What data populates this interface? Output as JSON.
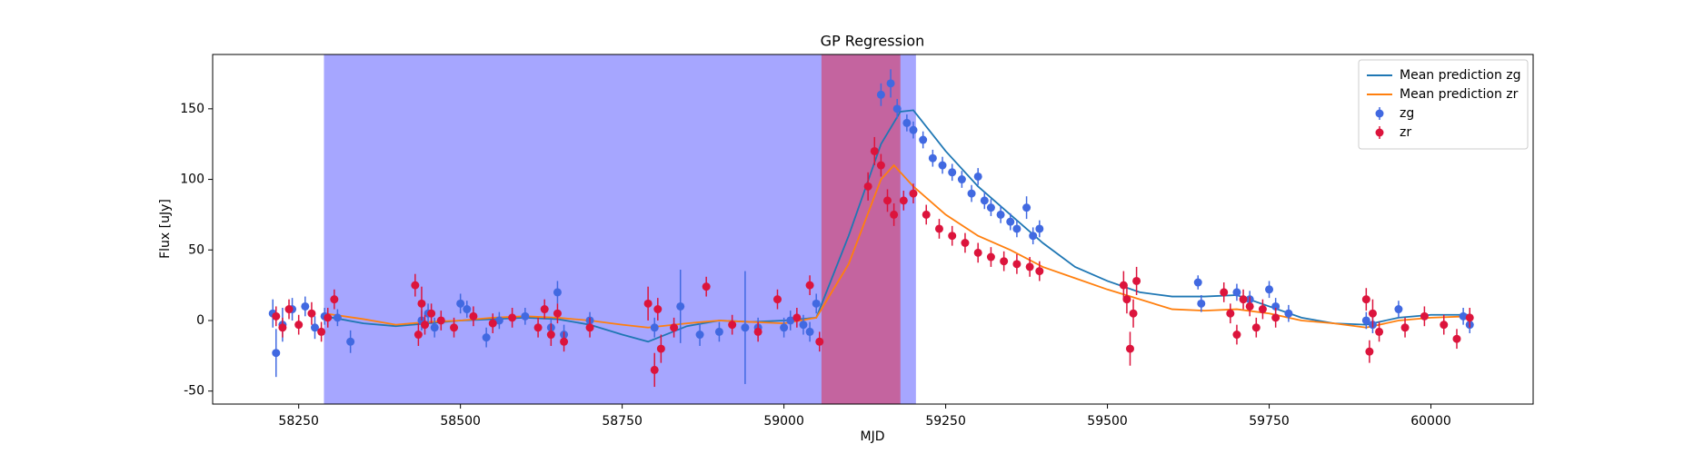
{
  "chart_data": {
    "type": "errorbar-line",
    "title": "GP Regression",
    "x_label": "MJD",
    "y_label": "Flux [uJy]",
    "xlim": [
      58117,
      60158
    ],
    "ylim": [
      -59.2,
      188.5
    ],
    "xticks": [
      58250,
      58500,
      58750,
      59000,
      59250,
      59500,
      59750,
      60000
    ],
    "yticks": [
      -50,
      0,
      50,
      100,
      150
    ],
    "legend": "upper right",
    "spans": [
      {
        "xmin": 58289,
        "xmax": 59204,
        "color": "#a6a6ff"
      },
      {
        "xmin": 59058,
        "xmax": 59180,
        "color": "#c4649f"
      }
    ],
    "series": [
      {
        "name": "Mean prediction zg",
        "style": "line",
        "color": "#1f77b4",
        "x": [
          58290,
          58350,
          58400,
          58450,
          58500,
          58550,
          58600,
          58650,
          58700,
          58750,
          58790,
          58850,
          58900,
          58950,
          59000,
          59050,
          59100,
          59150,
          59180,
          59200,
          59250,
          59300,
          59350,
          59400,
          59450,
          59500,
          59550,
          59600,
          59650,
          59700,
          59750,
          59800,
          59850,
          59900,
          59950,
          60000,
          60060
        ],
        "values": [
          3,
          -2,
          -4,
          -2,
          0,
          1,
          2,
          1,
          -3,
          -10,
          -15,
          -4,
          0,
          -1,
          0,
          2,
          60,
          125,
          148,
          149,
          120,
          95,
          75,
          55,
          38,
          28,
          20,
          17,
          17,
          18,
          10,
          2,
          -2,
          -3,
          2,
          4,
          4
        ]
      },
      {
        "name": "Mean prediction zr",
        "style": "line",
        "color": "#ff7f0e",
        "x": [
          58290,
          58350,
          58400,
          58450,
          58500,
          58550,
          58600,
          58650,
          58700,
          58750,
          58790,
          58850,
          58900,
          58950,
          59000,
          59050,
          59100,
          59150,
          59170,
          59200,
          59250,
          59300,
          59350,
          59400,
          59450,
          59500,
          59550,
          59600,
          59650,
          59700,
          59750,
          59800,
          59850,
          59900,
          59950,
          60000,
          60060
        ],
        "values": [
          5,
          1,
          -3,
          -1,
          0,
          2,
          3,
          2,
          0,
          -3,
          -5,
          -2,
          0,
          -1,
          -2,
          2,
          40,
          100,
          110,
          95,
          75,
          60,
          50,
          38,
          30,
          22,
          15,
          8,
          7,
          8,
          5,
          0,
          -2,
          -5,
          0,
          2,
          3
        ]
      },
      {
        "name": "zg",
        "style": "errorbar",
        "color": "#4169e1",
        "x": [
          58210,
          58215,
          58225,
          58240,
          58260,
          58275,
          58290,
          58310,
          58330,
          58440,
          58450,
          58460,
          58500,
          58510,
          58540,
          58560,
          58600,
          58640,
          58650,
          58660,
          58700,
          58800,
          58840,
          58870,
          58900,
          58940,
          58960,
          59000,
          59010,
          59030,
          59040,
          59050,
          59150,
          59165,
          59175,
          59190,
          59200,
          59215,
          59230,
          59245,
          59260,
          59275,
          59290,
          59300,
          59310,
          59320,
          59335,
          59350,
          59360,
          59375,
          59385,
          59395,
          59640,
          59645,
          59700,
          59720,
          59750,
          59760,
          59780,
          59900,
          59910,
          59950,
          60050,
          60060
        ],
        "values": [
          5,
          -23,
          -3,
          8,
          10,
          -5,
          3,
          2,
          -15,
          0,
          5,
          -5,
          12,
          8,
          -12,
          0,
          3,
          -5,
          20,
          -10,
          0,
          -5,
          10,
          -10,
          -8,
          -5,
          -5,
          -5,
          0,
          -3,
          -8,
          12,
          160,
          168,
          150,
          140,
          135,
          128,
          115,
          110,
          105,
          100,
          90,
          102,
          85,
          80,
          75,
          70,
          65,
          80,
          60,
          65,
          27,
          12,
          20,
          15,
          22,
          10,
          5,
          0,
          -3,
          8,
          3,
          -3
        ],
        "errors": [
          10,
          17,
          12,
          8,
          7,
          8,
          6,
          6,
          8,
          7,
          7,
          7,
          7,
          6,
          7,
          6,
          6,
          7,
          8,
          7,
          6,
          7,
          26,
          8,
          7,
          40,
          7,
          7,
          7,
          7,
          7,
          7,
          8,
          10,
          7,
          6,
          6,
          6,
          6,
          6,
          6,
          6,
          6,
          6,
          6,
          6,
          6,
          6,
          6,
          8,
          6,
          6,
          5,
          6,
          6,
          6,
          6,
          6,
          6,
          6,
          6,
          6,
          6,
          6
        ]
      },
      {
        "name": "zr",
        "style": "errorbar",
        "color": "#dc143c",
        "x": [
          58215,
          58225,
          58235,
          58250,
          58270,
          58285,
          58295,
          58305,
          58430,
          58435,
          58440,
          58445,
          58455,
          58470,
          58490,
          58520,
          58550,
          58580,
          58620,
          58630,
          58640,
          58650,
          58660,
          58700,
          58790,
          58800,
          58805,
          58810,
          58830,
          58880,
          58920,
          58960,
          58990,
          59020,
          59040,
          59055,
          59130,
          59140,
          59150,
          59160,
          59170,
          59185,
          59200,
          59220,
          59240,
          59260,
          59280,
          59300,
          59320,
          59340,
          59360,
          59380,
          59395,
          59525,
          59530,
          59535,
          59540,
          59545,
          59680,
          59690,
          59700,
          59710,
          59720,
          59730,
          59740,
          59760,
          59900,
          59905,
          59910,
          59920,
          59960,
          59990,
          60020,
          60040,
          60060
        ],
        "values": [
          3,
          -5,
          8,
          -3,
          5,
          -8,
          2,
          15,
          25,
          -10,
          12,
          -3,
          5,
          0,
          -5,
          3,
          -2,
          2,
          -5,
          8,
          -10,
          5,
          -15,
          -5,
          12,
          -35,
          8,
          -20,
          -5,
          24,
          -3,
          -8,
          15,
          2,
          25,
          -15,
          95,
          120,
          110,
          85,
          75,
          85,
          90,
          75,
          65,
          60,
          55,
          48,
          45,
          42,
          40,
          38,
          35,
          25,
          15,
          -20,
          5,
          28,
          20,
          5,
          -10,
          15,
          10,
          -5,
          8,
          2,
          15,
          -22,
          5,
          -8,
          -5,
          3,
          -3,
          -13,
          2
        ],
        "errors": [
          7,
          7,
          7,
          7,
          8,
          7,
          7,
          7,
          8,
          8,
          12,
          7,
          7,
          7,
          7,
          7,
          7,
          7,
          7,
          7,
          8,
          7,
          7,
          7,
          12,
          12,
          8,
          10,
          7,
          7,
          7,
          7,
          7,
          7,
          7,
          7,
          10,
          10,
          8,
          8,
          8,
          7,
          7,
          7,
          7,
          7,
          7,
          7,
          7,
          7,
          7,
          7,
          7,
          10,
          10,
          12,
          10,
          10,
          7,
          7,
          7,
          7,
          7,
          7,
          7,
          7,
          8,
          8,
          10,
          7,
          7,
          7,
          7,
          7,
          7
        ]
      }
    ]
  }
}
